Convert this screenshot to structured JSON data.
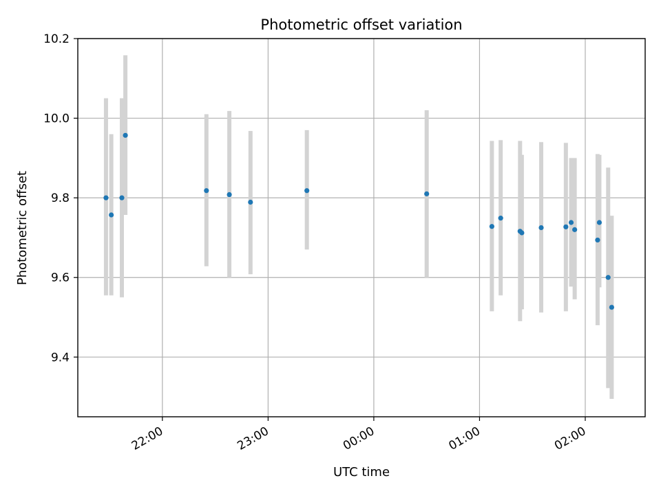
{
  "chart_data": {
    "type": "scatter",
    "title": "Photometric offset variation",
    "xlabel": "UTC time",
    "ylabel": "Photometric offset",
    "x_axis_type": "time",
    "xlim": [
      "21:12",
      "02:34"
    ],
    "ylim": [
      9.25,
      10.2
    ],
    "grid": true,
    "legend": "none",
    "x_ticks": [
      "22:00",
      "23:00",
      "00:00",
      "01:00",
      "02:00"
    ],
    "y_ticks": [
      "9.4",
      "9.6",
      "9.8",
      "10.0",
      "10.2"
    ],
    "colors": {
      "point": "#1f77b4",
      "error_bar": "#d3d3d3",
      "grid": "#b0b0b0"
    },
    "points": [
      {
        "time": "21:28",
        "y": 9.8,
        "ylow": 9.555,
        "yhigh": 10.05
      },
      {
        "time": "21:31",
        "y": 9.757,
        "ylow": 9.555,
        "yhigh": 9.96
      },
      {
        "time": "21:37",
        "y": 9.8,
        "ylow": 9.55,
        "yhigh": 10.05
      },
      {
        "time": "21:39",
        "y": 9.957,
        "ylow": 9.757,
        "yhigh": 10.158
      },
      {
        "time": "22:25",
        "y": 9.818,
        "ylow": 9.628,
        "yhigh": 10.01
      },
      {
        "time": "22:38",
        "y": 9.808,
        "ylow": 9.6,
        "yhigh": 10.018
      },
      {
        "time": "22:50",
        "y": 9.789,
        "ylow": 9.608,
        "yhigh": 9.968
      },
      {
        "time": "23:22",
        "y": 9.818,
        "ylow": 9.67,
        "yhigh": 9.97
      },
      {
        "time": "00:30",
        "y": 9.81,
        "ylow": 9.6,
        "yhigh": 10.02
      },
      {
        "time": "01:07",
        "y": 9.728,
        "ylow": 9.515,
        "yhigh": 9.943
      },
      {
        "time": "01:12",
        "y": 9.749,
        "ylow": 9.555,
        "yhigh": 9.945
      },
      {
        "time": "01:23",
        "y": 9.716,
        "ylow": 9.49,
        "yhigh": 9.943
      },
      {
        "time": "01:24",
        "y": 9.712,
        "ylow": 9.52,
        "yhigh": 9.908
      },
      {
        "time": "01:35",
        "y": 9.725,
        "ylow": 9.512,
        "yhigh": 9.94
      },
      {
        "time": "01:49",
        "y": 9.727,
        "ylow": 9.515,
        "yhigh": 9.938
      },
      {
        "time": "01:52",
        "y": 9.738,
        "ylow": 9.577,
        "yhigh": 9.9
      },
      {
        "time": "01:54",
        "y": 9.72,
        "ylow": 9.545,
        "yhigh": 9.9
      },
      {
        "time": "02:07",
        "y": 9.694,
        "ylow": 9.48,
        "yhigh": 9.91
      },
      {
        "time": "02:08",
        "y": 9.738,
        "ylow": 9.575,
        "yhigh": 9.908
      },
      {
        "time": "02:13",
        "y": 9.6,
        "ylow": 9.322,
        "yhigh": 9.876
      },
      {
        "time": "02:15",
        "y": 9.525,
        "ylow": 9.295,
        "yhigh": 9.755
      }
    ]
  }
}
